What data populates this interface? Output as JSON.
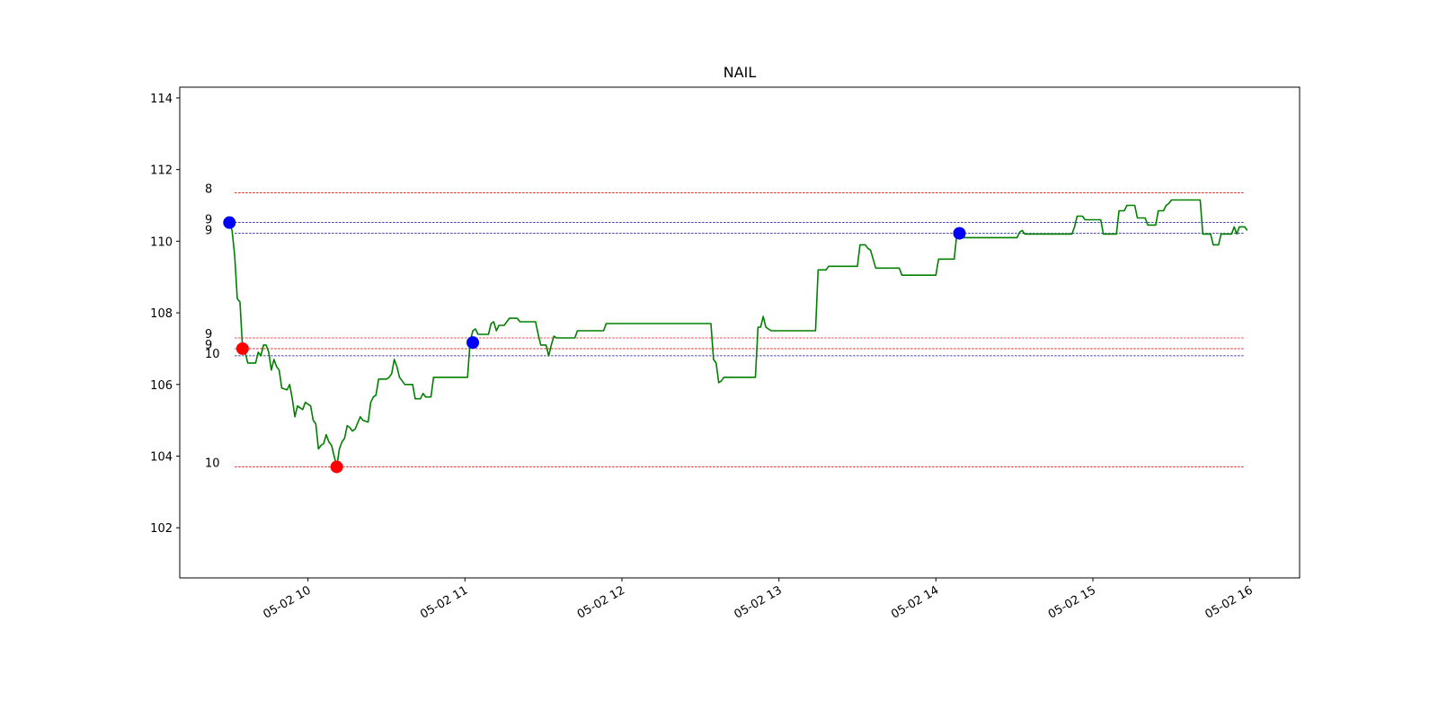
{
  "chart_data": {
    "type": "line",
    "title": "NAIL",
    "xlabel": "",
    "ylabel": "",
    "grid": false,
    "ylim": [
      100.6,
      114.3
    ],
    "xlim": [
      "05-02 09:11",
      "05-02 16:19"
    ],
    "x_ticks": [
      "05-02 10",
      "05-02 11",
      "05-02 12",
      "05-02 13",
      "05-02 14",
      "05-02 15",
      "05-02 16"
    ],
    "y_ticks": [
      102,
      104,
      106,
      108,
      110,
      112,
      114
    ],
    "series": [
      {
        "color": "#008000",
        "points": [
          [
            "05-02 09:30",
            110.5
          ],
          [
            "05-02 09:31",
            110.3
          ],
          [
            "05-02 09:32",
            109.6
          ],
          [
            "05-02 09:33",
            108.4
          ],
          [
            "05-02 09:34",
            108.3
          ],
          [
            "05-02 09:35",
            107.0
          ],
          [
            "05-02 09:36",
            106.9
          ],
          [
            "05-02 09:37",
            106.6
          ],
          [
            "05-02 09:40",
            106.6
          ],
          [
            "05-02 09:41",
            106.9
          ],
          [
            "05-02 09:42",
            106.8
          ],
          [
            "05-02 09:43",
            107.1
          ],
          [
            "05-02 09:44",
            107.1
          ],
          [
            "05-02 09:45",
            106.9
          ],
          [
            "05-02 09:46",
            106.4
          ],
          [
            "05-02 09:47",
            106.7
          ],
          [
            "05-02 09:48",
            106.5
          ],
          [
            "05-02 09:49",
            106.4
          ],
          [
            "05-02 09:50",
            105.9
          ],
          [
            "05-02 09:52",
            105.85
          ],
          [
            "05-02 09:53",
            106.0
          ],
          [
            "05-02 09:54",
            105.6
          ],
          [
            "05-02 09:55",
            105.1
          ],
          [
            "05-02 09:56",
            105.4
          ],
          [
            "05-02 09:58",
            105.3
          ],
          [
            "05-02 09:59",
            105.5
          ],
          [
            "05-02 10:01",
            105.4
          ],
          [
            "05-02 10:02",
            105.0
          ],
          [
            "05-02 10:03",
            104.9
          ],
          [
            "05-02 10:04",
            104.2
          ],
          [
            "05-02 10:05",
            104.3
          ],
          [
            "05-02 10:06",
            104.35
          ],
          [
            "05-02 10:07",
            104.6
          ],
          [
            "05-02 10:08",
            104.4
          ],
          [
            "05-02 10:09",
            104.3
          ],
          [
            "05-02 10:10",
            104.0
          ],
          [
            "05-02 10:11",
            103.7
          ],
          [
            "05-02 10:12",
            104.2
          ],
          [
            "05-02 10:13",
            104.4
          ],
          [
            "05-02 10:14",
            104.5
          ],
          [
            "05-02 10:15",
            104.85
          ],
          [
            "05-02 10:16",
            104.8
          ],
          [
            "05-02 10:17",
            104.7
          ],
          [
            "05-02 10:18",
            104.75
          ],
          [
            "05-02 10:20",
            105.1
          ],
          [
            "05-02 10:21",
            105.0
          ],
          [
            "05-02 10:23",
            104.95
          ],
          [
            "05-02 10:24",
            105.5
          ],
          [
            "05-02 10:25",
            105.65
          ],
          [
            "05-02 10:26",
            105.7
          ],
          [
            "05-02 10:27",
            106.15
          ],
          [
            "05-02 10:30",
            106.15
          ],
          [
            "05-02 10:31",
            106.2
          ],
          [
            "05-02 10:32",
            106.3
          ],
          [
            "05-02 10:33",
            106.7
          ],
          [
            "05-02 10:34",
            106.5
          ],
          [
            "05-02 10:35",
            106.2
          ],
          [
            "05-02 10:36",
            106.1
          ],
          [
            "05-02 10:37",
            106.0
          ],
          [
            "05-02 10:40",
            106.0
          ],
          [
            "05-02 10:41",
            105.6
          ],
          [
            "05-02 10:43",
            105.6
          ],
          [
            "05-02 10:44",
            105.75
          ],
          [
            "05-02 10:45",
            105.65
          ],
          [
            "05-02 10:47",
            105.65
          ],
          [
            "05-02 10:48",
            106.2
          ],
          [
            "05-02 11:01",
            106.2
          ],
          [
            "05-02 11:02",
            107.2
          ],
          [
            "05-02 11:03",
            107.5
          ],
          [
            "05-02 11:04",
            107.55
          ],
          [
            "05-02 11:05",
            107.4
          ],
          [
            "05-02 11:09",
            107.4
          ],
          [
            "05-02 11:10",
            107.7
          ],
          [
            "05-02 11:11",
            107.75
          ],
          [
            "05-02 11:12",
            107.5
          ],
          [
            "05-02 11:13",
            107.65
          ],
          [
            "05-02 11:15",
            107.65
          ],
          [
            "05-02 11:17",
            107.85
          ],
          [
            "05-02 11:20",
            107.85
          ],
          [
            "05-02 11:21",
            107.75
          ],
          [
            "05-02 11:27",
            107.75
          ],
          [
            "05-02 11:28",
            107.4
          ],
          [
            "05-02 11:29",
            107.1
          ],
          [
            "05-02 11:31",
            107.1
          ],
          [
            "05-02 11:32",
            106.8
          ],
          [
            "05-02 11:33",
            107.1
          ],
          [
            "05-02 11:34",
            107.35
          ],
          [
            "05-02 11:35",
            107.3
          ],
          [
            "05-02 11:37",
            107.3
          ],
          [
            "05-02 11:42",
            107.3
          ],
          [
            "05-02 11:43",
            107.5
          ],
          [
            "05-02 11:53",
            107.5
          ],
          [
            "05-02 11:54",
            107.7
          ],
          [
            "05-02 12:34",
            107.7
          ],
          [
            "05-02 12:35",
            106.7
          ],
          [
            "05-02 12:36",
            106.6
          ],
          [
            "05-02 12:37",
            106.05
          ],
          [
            "05-02 12:38",
            106.1
          ],
          [
            "05-02 12:39",
            106.2
          ],
          [
            "05-02 12:51",
            106.2
          ],
          [
            "05-02 12:52",
            107.6
          ],
          [
            "05-02 12:53",
            107.6
          ],
          [
            "05-02 12:54",
            107.9
          ],
          [
            "05-02 12:55",
            107.6
          ],
          [
            "05-02 12:57",
            107.5
          ],
          [
            "05-02 13:14",
            107.5
          ],
          [
            "05-02 13:15",
            109.2
          ],
          [
            "05-02 13:18",
            109.2
          ],
          [
            "05-02 13:19",
            109.3
          ],
          [
            "05-02 13:30",
            109.3
          ],
          [
            "05-02 13:31",
            109.9
          ],
          [
            "05-02 13:33",
            109.9
          ],
          [
            "05-02 13:34",
            109.8
          ],
          [
            "05-02 13:35",
            109.75
          ],
          [
            "05-02 13:36",
            109.5
          ],
          [
            "05-02 13:37",
            109.25
          ],
          [
            "05-02 13:46",
            109.25
          ],
          [
            "05-02 13:47",
            109.05
          ],
          [
            "05-02 14:00",
            109.05
          ],
          [
            "05-02 14:01",
            109.5
          ],
          [
            "05-02 14:07",
            109.5
          ],
          [
            "05-02 14:08",
            110.2
          ],
          [
            "05-02 14:10",
            110.1
          ],
          [
            "05-02 14:31",
            110.1
          ],
          [
            "05-02 14:32",
            110.25
          ],
          [
            "05-02 14:33",
            110.3
          ],
          [
            "05-02 14:34",
            110.2
          ],
          [
            "05-02 14:52",
            110.2
          ],
          [
            "05-02 14:53",
            110.4
          ],
          [
            "05-02 14:54",
            110.7
          ],
          [
            "05-02 14:56",
            110.7
          ],
          [
            "05-02 14:57",
            110.6
          ],
          [
            "05-02 15:03",
            110.6
          ],
          [
            "05-02 15:04",
            110.2
          ],
          [
            "05-02 15:09",
            110.2
          ],
          [
            "05-02 15:10",
            110.85
          ],
          [
            "05-02 15:12",
            110.85
          ],
          [
            "05-02 15:13",
            111.0
          ],
          [
            "05-02 15:16",
            111.0
          ],
          [
            "05-02 15:17",
            110.65
          ],
          [
            "05-02 15:20",
            110.65
          ],
          [
            "05-02 15:21",
            110.45
          ],
          [
            "05-02 15:24",
            110.45
          ],
          [
            "05-02 15:25",
            110.85
          ],
          [
            "05-02 15:27",
            110.85
          ],
          [
            "05-02 15:28",
            111.0
          ],
          [
            "05-02 15:29",
            111.05
          ],
          [
            "05-02 15:30",
            111.15
          ],
          [
            "05-02 15:41",
            111.15
          ],
          [
            "05-02 15:42",
            110.2
          ],
          [
            "05-02 15:45",
            110.2
          ],
          [
            "05-02 15:46",
            109.9
          ],
          [
            "05-02 15:48",
            109.9
          ],
          [
            "05-02 15:49",
            110.2
          ],
          [
            "05-02 15:53",
            110.2
          ],
          [
            "05-02 15:54",
            110.4
          ],
          [
            "05-02 15:55",
            110.2
          ],
          [
            "05-02 15:56",
            110.4
          ],
          [
            "05-02 15:58",
            110.4
          ],
          [
            "05-02 15:59",
            110.3
          ]
        ]
      }
    ],
    "hlines": [
      {
        "y": 111.35,
        "color": "#ff0000",
        "label": "8",
        "label_y": 111.45
      },
      {
        "y": 110.52,
        "color": "#0000aa",
        "label": "9",
        "label_y": 110.6
      },
      {
        "y": 110.22,
        "color": "#0000aa",
        "label": "9",
        "label_y": 110.3
      },
      {
        "y": 107.3,
        "color": "#ff0000",
        "label": "9",
        "label_y": 107.4
      },
      {
        "y": 107.0,
        "color": "#ff0000",
        "label": "9",
        "label_y": 107.1
      },
      {
        "y": 106.8,
        "color": "#0000aa",
        "label": "10",
        "label_y": 106.85
      },
      {
        "y": 103.7,
        "color": "#ff0000",
        "label": "10",
        "label_y": 103.8
      }
    ],
    "hline_span": [
      "05-02 09:32",
      "05-02 15:58"
    ],
    "markers": [
      {
        "x": "05-02 09:30",
        "y": 110.52,
        "color": "#0000ff"
      },
      {
        "x": "05-02 09:35",
        "y": 107.0,
        "color": "#ff0000"
      },
      {
        "x": "05-02 10:11",
        "y": 103.7,
        "color": "#ff0000"
      },
      {
        "x": "05-02 11:03",
        "y": 107.17,
        "color": "#0000ff"
      },
      {
        "x": "05-02 14:09",
        "y": 110.22,
        "color": "#0000ff"
      }
    ]
  }
}
